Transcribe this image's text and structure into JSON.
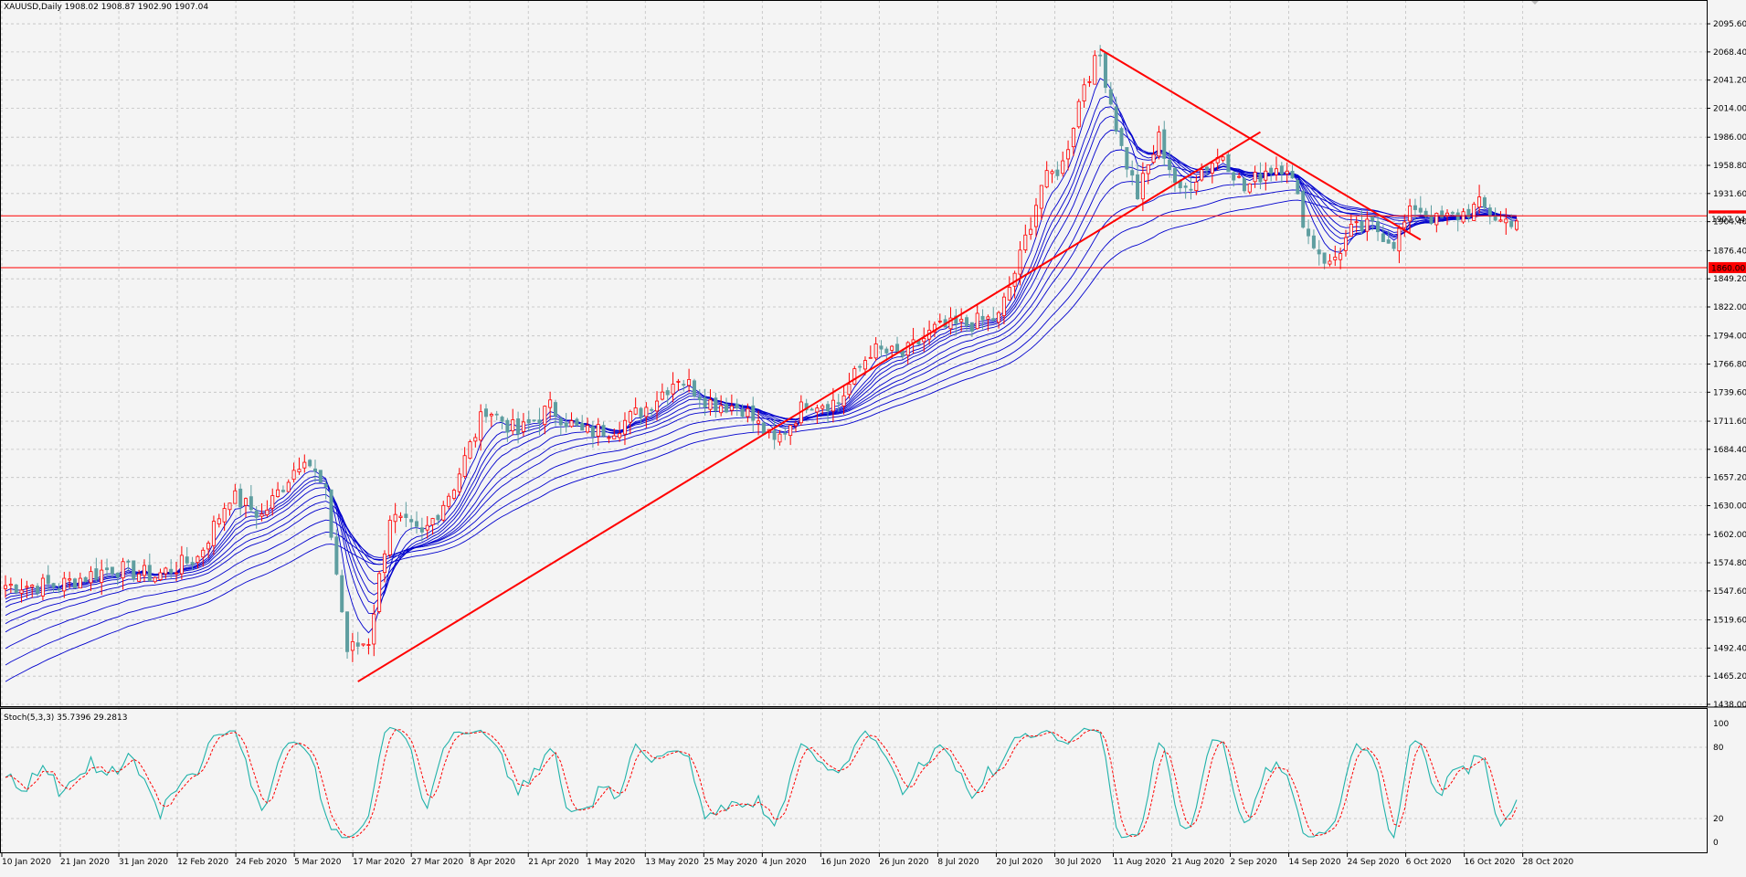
{
  "header": {
    "symbol_info": "XAUUSD,Daily  1908.02 1908.87 1902.90 1907.04"
  },
  "indicator": {
    "label": "Stoch(5,3,3) 35.7396 29.2813"
  },
  "chart_data": {
    "type": "candlestick",
    "symbol": "XAUUSD",
    "timeframe": "Daily",
    "ohlc_last": {
      "open": 1908.02,
      "high": 1908.87,
      "low": 1902.9,
      "close": 1907.04
    },
    "price_axis": {
      "ylim": [
        1438.0,
        2108.0
      ],
      "ticks": [
        "2095.60",
        "2068.40",
        "2041.20",
        "2014.00",
        "1986.00",
        "1958.80",
        "1931.60",
        "1904.40",
        "1876.40",
        "1849.20",
        "1822.00",
        "1794.00",
        "1766.80",
        "1739.60",
        "1711.60",
        "1684.40",
        "1657.20",
        "1630.00",
        "1602.00",
        "1574.80",
        "1547.60",
        "1519.60",
        "1492.40",
        "1465.20",
        "1438.00"
      ]
    },
    "date_axis": {
      "ticks": [
        "10 Jan 2020",
        "21 Jan 2020",
        "31 Jan 2020",
        "12 Feb 2020",
        "24 Feb 2020",
        "5 Mar 2020",
        "17 Mar 2020",
        "27 Mar 2020",
        "8 Apr 2020",
        "21 Apr 2020",
        "1 May 2020",
        "13 May 2020",
        "25 May 2020",
        "4 Jun 2020",
        "16 Jun 2020",
        "26 Jun 2020",
        "8 Jul 2020",
        "20 Jul 2020",
        "30 Jul 2020",
        "11 Aug 2020",
        "21 Aug 2020",
        "2 Sep 2020",
        "14 Sep 2020",
        "24 Sep 2020",
        "6 Oct 2020",
        "16 Oct 2020",
        "28 Oct 2020"
      ]
    },
    "horizontal_levels": [
      {
        "price": 1910.0,
        "label": "1910.00",
        "color": "#ff0000"
      },
      {
        "price": 1860.0,
        "label": "1860.00",
        "color": "#ff0000"
      }
    ],
    "current_price_label": "1907.04",
    "trendlines": [
      {
        "from": {
          "date_index": 66,
          "price": 1460
        },
        "to": {
          "date_index": 235,
          "price": 1991
        },
        "color": "#ff0000"
      },
      {
        "from": {
          "date_index": 205,
          "price": 2071
        },
        "to": {
          "date_index": 265,
          "price": 1887
        },
        "color": "#ff0000"
      }
    ],
    "price_path": [
      {
        "date_index": 0,
        "price": 1553
      },
      {
        "date_index": 10,
        "price": 1553
      },
      {
        "date_index": 20,
        "price": 1570
      },
      {
        "date_index": 28,
        "price": 1562
      },
      {
        "date_index": 36,
        "price": 1580
      },
      {
        "date_index": 42,
        "price": 1640
      },
      {
        "date_index": 48,
        "price": 1620
      },
      {
        "date_index": 56,
        "price": 1680
      },
      {
        "date_index": 60,
        "price": 1640
      },
      {
        "date_index": 64,
        "price": 1490
      },
      {
        "date_index": 68,
        "price": 1500
      },
      {
        "date_index": 72,
        "price": 1620
      },
      {
        "date_index": 78,
        "price": 1600
      },
      {
        "date_index": 84,
        "price": 1650
      },
      {
        "date_index": 90,
        "price": 1725
      },
      {
        "date_index": 96,
        "price": 1700
      },
      {
        "date_index": 102,
        "price": 1725
      },
      {
        "date_index": 108,
        "price": 1700
      },
      {
        "date_index": 114,
        "price": 1705
      },
      {
        "date_index": 120,
        "price": 1725
      },
      {
        "date_index": 126,
        "price": 1755
      },
      {
        "date_index": 132,
        "price": 1730
      },
      {
        "date_index": 138,
        "price": 1725
      },
      {
        "date_index": 144,
        "price": 1690
      },
      {
        "date_index": 150,
        "price": 1730
      },
      {
        "date_index": 156,
        "price": 1730
      },
      {
        "date_index": 162,
        "price": 1780
      },
      {
        "date_index": 168,
        "price": 1775
      },
      {
        "date_index": 174,
        "price": 1800
      },
      {
        "date_index": 180,
        "price": 1805
      },
      {
        "date_index": 186,
        "price": 1812
      },
      {
        "date_index": 190,
        "price": 1870
      },
      {
        "date_index": 194,
        "price": 1940
      },
      {
        "date_index": 198,
        "price": 1960
      },
      {
        "date_index": 202,
        "price": 2040
      },
      {
        "date_index": 205,
        "price": 2065
      },
      {
        "date_index": 209,
        "price": 1975
      },
      {
        "date_index": 212,
        "price": 1930
      },
      {
        "date_index": 216,
        "price": 1985
      },
      {
        "date_index": 220,
        "price": 1930
      },
      {
        "date_index": 224,
        "price": 1955
      },
      {
        "date_index": 228,
        "price": 1970
      },
      {
        "date_index": 232,
        "price": 1935
      },
      {
        "date_index": 236,
        "price": 1955
      },
      {
        "date_index": 240,
        "price": 1960
      },
      {
        "date_index": 244,
        "price": 1890
      },
      {
        "date_index": 248,
        "price": 1862
      },
      {
        "date_index": 252,
        "price": 1895
      },
      {
        "date_index": 256,
        "price": 1900
      },
      {
        "date_index": 260,
        "price": 1885
      },
      {
        "date_index": 264,
        "price": 1920
      },
      {
        "date_index": 268,
        "price": 1905
      },
      {
        "date_index": 272,
        "price": 1910
      },
      {
        "date_index": 276,
        "price": 1920
      },
      {
        "date_index": 280,
        "price": 1905
      },
      {
        "date_index": 283,
        "price": 1907
      }
    ],
    "ema_periods": [
      5,
      8,
      10,
      12,
      15,
      20,
      25,
      30,
      40,
      50,
      60
    ],
    "stochastic": {
      "name": "Stoch(5,3,3)",
      "main": 35.7396,
      "signal": 29.2813,
      "ylim": [
        0,
        100
      ],
      "ticks": [
        "100",
        "80",
        "20",
        "0"
      ],
      "main_color": "#20b2aa",
      "signal_color": "#ff0000"
    },
    "colors": {
      "background": "#f4f4f4",
      "bull_candle": "#ff0000",
      "bear_candle": "#5f9ea0",
      "ema": "#0000cd",
      "grid": "#c0c0c0"
    }
  }
}
